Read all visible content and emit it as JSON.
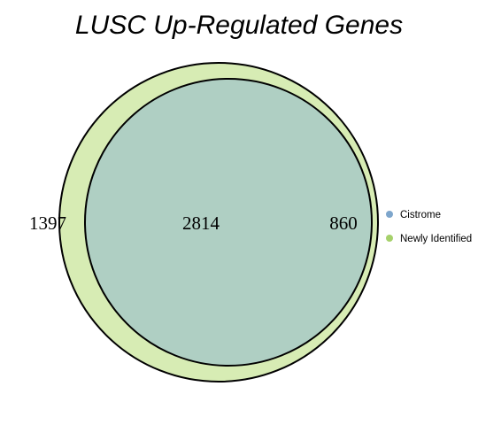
{
  "diagram": {
    "title": "LUSC Up-Regulated Genes",
    "sets": [
      {
        "name": "Cistrome",
        "color": "#b9d0e6",
        "legend_color": "#7ea6cc"
      },
      {
        "name": "Newly Identified",
        "color": "#d7ecb4",
        "legend_color": "#a6d16b"
      }
    ],
    "overlap_color": "#afcfc3",
    "counts": {
      "newly_only": "1397",
      "both": "2814",
      "cistrome_only": "860"
    }
  }
}
